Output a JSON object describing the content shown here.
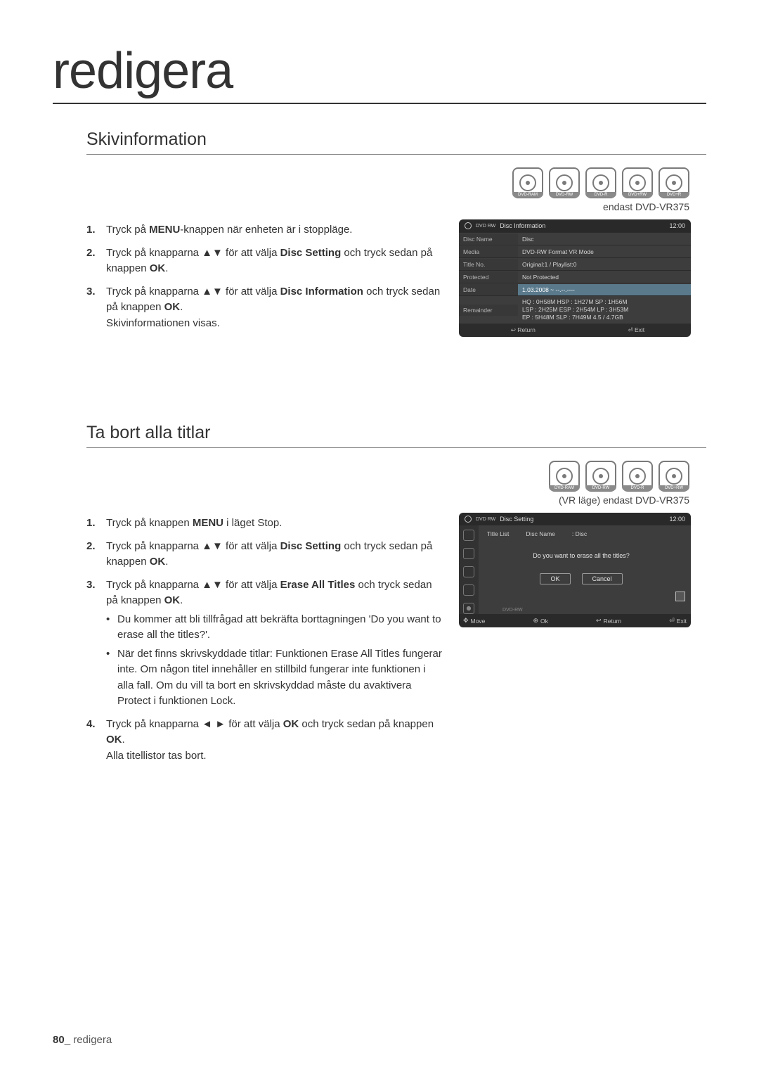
{
  "chapter": "redigera",
  "page_number": "80",
  "footer_label": "redigera",
  "section1": {
    "title": "Skivinformation",
    "disc_icons": [
      "DVD-RAM",
      "DVD-RW",
      "DVD-R",
      "DVD+RW",
      "DVD+R"
    ],
    "endast_note": "endast DVD-VR375",
    "steps": [
      {
        "num": "1.",
        "before": "Tryck på ",
        "bold": "MENU",
        "after": "-knappen när enheten är i stoppläge."
      },
      {
        "num": "2.",
        "before": "Tryck på knapparna ▲▼ för att välja ",
        "bold": "Disc Setting",
        "after": " och tryck sedan på knappen ",
        "bold2": "OK",
        "after2": "."
      },
      {
        "num": "3.",
        "before": "Tryck på knapparna ▲▼ för att välja ",
        "bold": "Disc Information",
        "after": " och tryck sedan på knappen ",
        "bold2": "OK",
        "after2": ".",
        "trail": "Skivinformationen visas."
      }
    ],
    "screenshot": {
      "header_left_label": "DVD RW",
      "header_title": "Disc Information",
      "header_time": "12:00",
      "rows": [
        {
          "k": "Disc Name",
          "v": "Disc",
          "highlight": false
        },
        {
          "k": "Media",
          "v": "DVD-RW     Format     VR Mode",
          "highlight": false
        },
        {
          "k": "Title No.",
          "v": "Original:1 / Playlist:0",
          "highlight": false
        },
        {
          "k": "Protected",
          "v": "Not Protected",
          "highlight": false
        },
        {
          "k": "Date",
          "v": "1.03.2008 ~ --.--.----",
          "highlight": true
        }
      ],
      "remainder_k": "Remainder",
      "remainder_lines": [
        "HQ : 0H58M   HSP : 1H27M  SP : 1H56M",
        "LSP : 2H25M  ESP : 2H54M  LP : 3H53M",
        "EP : 5H48M   SLP : 7H49M  4.5 / 4.7GB"
      ],
      "footer": [
        "↩ Return",
        "⏎ Exit"
      ]
    }
  },
  "section2": {
    "title": "Ta bort alla titlar",
    "disc_icons": [
      "DVD-RAM",
      "DVD-RW",
      "DVD-R",
      "DVD+RW"
    ],
    "endast_note": "(VR läge)  endast DVD-VR375",
    "steps": [
      {
        "num": "1.",
        "before": "Tryck på knappen ",
        "bold": "MENU",
        "after": " i läget Stop."
      },
      {
        "num": "2.",
        "before": "Tryck på knapparna ▲▼ för att välja ",
        "bold": "Disc Setting",
        "after": " och tryck sedan på knappen ",
        "bold2": "OK",
        "after2": "."
      },
      {
        "num": "3.",
        "before": "Tryck på knapparna ▲▼ för att välja ",
        "bold": "Erase All Titles",
        "after": " och tryck sedan på knappen ",
        "bold2": "OK",
        "after2": ".",
        "subs": [
          "Du kommer att bli tillfrågad att bekräfta borttagningen 'Do you want to erase all the titles?'.",
          "När det finns skrivskyddade titlar: Funktionen Erase All Titles fungerar inte. Om någon titel innehåller en stillbild fungerar inte funktionen i alla fall. Om du vill ta bort en skrivskyddad måste du avaktivera Protect i funktionen Lock."
        ]
      },
      {
        "num": "4.",
        "before": "Tryck på knapparna ◄ ► för att välja ",
        "bold": "OK",
        "after": " och tryck sedan på knappen ",
        "bold2": "OK",
        "after2": ".",
        "trail": "Alla titellistor tas bort."
      }
    ],
    "screenshot": {
      "header_left_label": "DVD RW",
      "header_title": "Disc Setting",
      "header_time": "12:00",
      "row1_left": "Title List",
      "row1_mid": "Disc Name",
      "row1_right": ": Disc",
      "dialog_text": "Do you want to erase all the titles?",
      "btn_ok": "OK",
      "btn_cancel": "Cancel",
      "dvd_rmv": "DVD-RW",
      "footer": [
        {
          "icon": "✥",
          "label": "Move"
        },
        {
          "icon": "⊕",
          "label": "Ok"
        },
        {
          "icon": "↩",
          "label": "Return"
        },
        {
          "icon": "⏎",
          "label": "Exit"
        }
      ]
    }
  }
}
